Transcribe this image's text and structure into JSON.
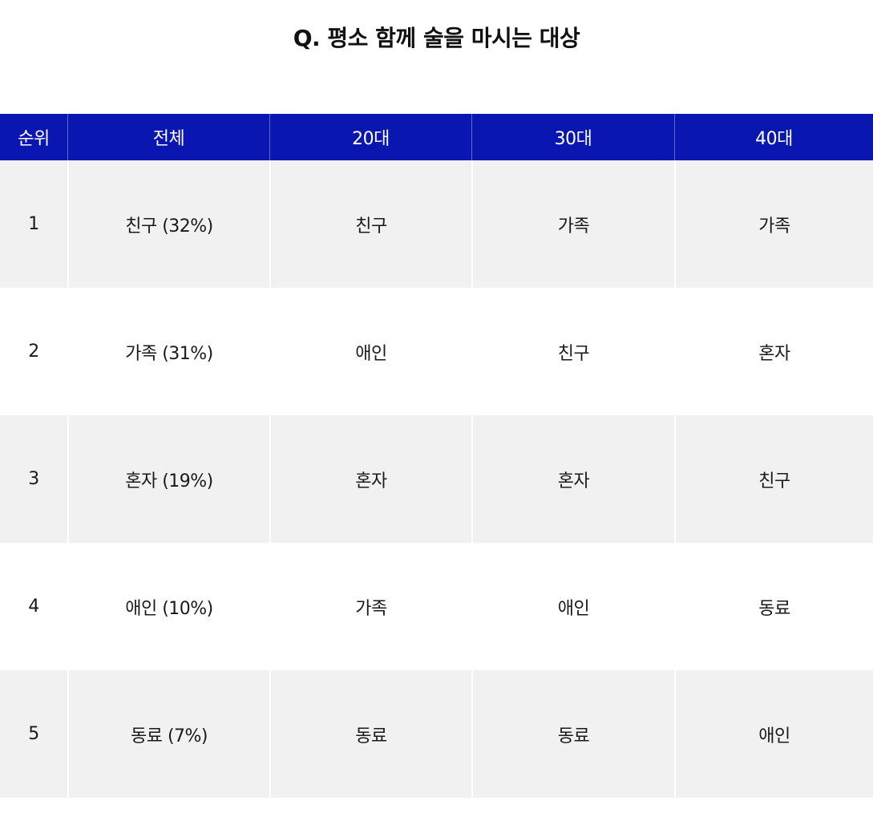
{
  "title": "Q. 평소 함께 술을 마시는 대상",
  "table": {
    "headers": [
      "순위",
      "전체",
      "20대",
      "30대",
      "40대"
    ],
    "rows": [
      {
        "rank": "1",
        "all": "친구 (32%)",
        "age20": "친구",
        "age30": "가족",
        "age40": "가족"
      },
      {
        "rank": "2",
        "all": "가족 (31%)",
        "age20": "애인",
        "age30": "친구",
        "age40": "혼자"
      },
      {
        "rank": "3",
        "all": "혼자 (19%)",
        "age20": "혼자",
        "age30": "혼자",
        "age40": "친구"
      },
      {
        "rank": "4",
        "all": "애인 (10%)",
        "age20": "가족",
        "age30": "애인",
        "age40": "동료"
      },
      {
        "rank": "5",
        "all": "동료 (7%)",
        "age20": "동료",
        "age30": "동료",
        "age40": "애인"
      }
    ]
  },
  "colors": {
    "header_bg": "#0a16b0",
    "header_text": "#ffffff",
    "row_alt_bg": "#f1f1f1",
    "row_bg": "#ffffff"
  }
}
